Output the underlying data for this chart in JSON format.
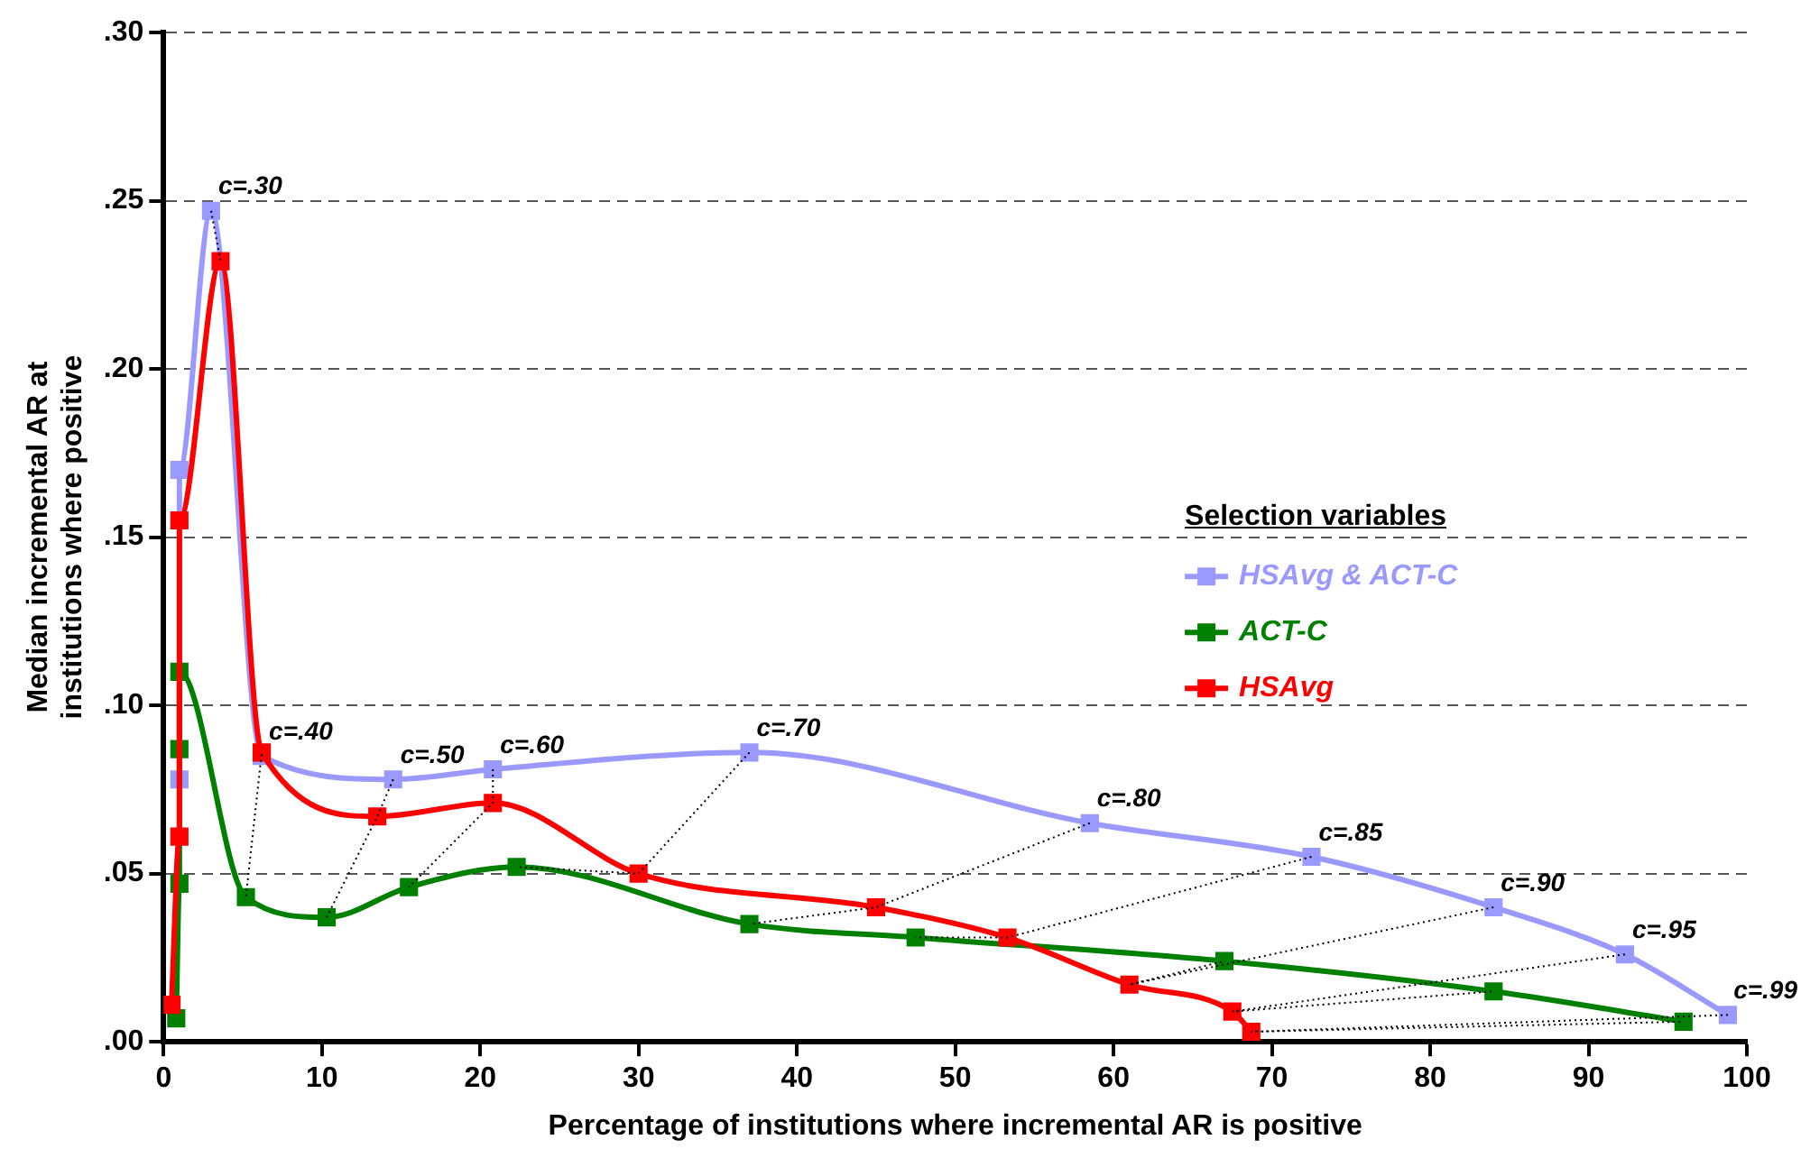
{
  "chart_data": {
    "type": "line",
    "xlabel": "Percentage of institutions where incremental AR is positive",
    "ylabel": "Median incremental AR at\ninstitutions where positive",
    "legend_title": "Selection variables",
    "legend": "right",
    "grid": "y",
    "marker": "square",
    "line_style": "solid",
    "xlim": [
      0,
      100
    ],
    "xticks": [
      0,
      10,
      20,
      30,
      40,
      50,
      60,
      70,
      80,
      90,
      100
    ],
    "ylim": [
      0,
      0.3
    ],
    "yticks": [
      {
        "value": 0,
        "label": ".00"
      },
      {
        "value": 0.05,
        "label": ".05"
      },
      {
        "value": 0.1,
        "label": ".10"
      },
      {
        "value": 0.15,
        "label": ".15"
      },
      {
        "value": 0.2,
        "label": ".20"
      },
      {
        "value": 0.25,
        "label": ".25"
      },
      {
        "value": 0.3,
        "label": ".30"
      }
    ],
    "series": [
      {
        "name": "HSAvg & ACT-C",
        "color": "#9999ff",
        "x": [
          1,
          1,
          3,
          6.2,
          14.5,
          20.8,
          37,
          58.5,
          72.5,
          84,
          92.3,
          98.8
        ],
        "values": [
          0.078,
          0.17,
          0.247,
          0.085,
          0.078,
          0.081,
          0.086,
          0.065,
          0.055,
          0.04,
          0.026,
          0.008
        ]
      },
      {
        "name": "ACT-C",
        "color": "#008000",
        "x": [
          0.8,
          1,
          1,
          1,
          5.2,
          10.3,
          15.5,
          22.3,
          37,
          47.5,
          67,
          84,
          96
        ],
        "values": [
          0.007,
          0.047,
          0.087,
          0.11,
          0.043,
          0.037,
          0.046,
          0.052,
          0.035,
          0.031,
          0.024,
          0.015,
          0.006
        ]
      },
      {
        "name": "HSAvg",
        "color": "#ff0000",
        "x": [
          0.5,
          1,
          1,
          3.6,
          6.2,
          13.5,
          20.8,
          30,
          45,
          53.3,
          61,
          67.5,
          68.7
        ],
        "values": [
          0.011,
          0.061,
          0.155,
          0.232,
          0.086,
          0.067,
          0.071,
          0.05,
          0.04,
          0.031,
          0.017,
          0.009,
          0.003
        ]
      }
    ],
    "annotations": [
      {
        "text": "c=.30",
        "x": 3,
        "y": 0.247
      },
      {
        "text": "c=.40",
        "x": 6.2,
        "y": 0.085
      },
      {
        "text": "c=.50",
        "x": 14.5,
        "y": 0.078
      },
      {
        "text": "c=.60",
        "x": 20.8,
        "y": 0.081
      },
      {
        "text": "c=.70",
        "x": 37,
        "y": 0.086
      },
      {
        "text": "c=.80",
        "x": 58.5,
        "y": 0.065
      },
      {
        "text": "c=.85",
        "x": 72.5,
        "y": 0.055
      },
      {
        "text": "c=.90",
        "x": 84,
        "y": 0.04
      },
      {
        "text": "c=.95",
        "x": 92.3,
        "y": 0.026
      },
      {
        "text": "c=.99",
        "x": 98.8,
        "y": 0.008
      }
    ]
  }
}
